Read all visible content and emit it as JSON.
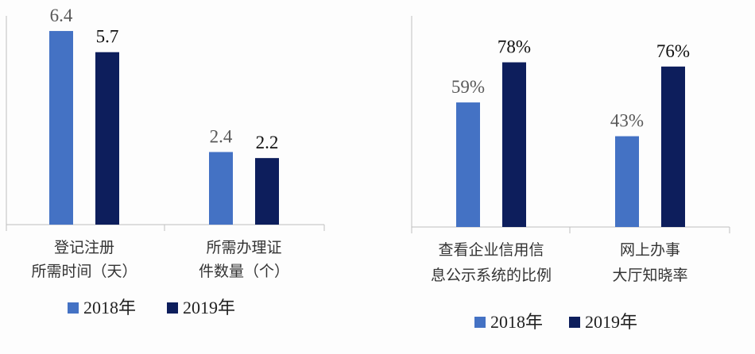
{
  "colors": {
    "s2018": "#4472C4",
    "s2019": "#0D1E5C",
    "label2018": "#595959",
    "label2019": "#111111",
    "axis": "#BFBFBF"
  },
  "chart_data": [
    {
      "type": "bar",
      "categories": [
        [
          "登记注册",
          "所需时间（天）"
        ],
        [
          "所需办理证",
          "件数量（个）"
        ]
      ],
      "series": [
        {
          "name": "2018年",
          "values": [
            6.4,
            2.4
          ],
          "labels": [
            "6.4",
            "2.4"
          ]
        },
        {
          "name": "2019年",
          "values": [
            5.7,
            2.2
          ],
          "labels": [
            "5.7",
            "2.2"
          ]
        }
      ],
      "ylim": [
        0,
        6.9
      ],
      "legend": "bottom"
    },
    {
      "type": "bar",
      "categories": [
        [
          "查看企业信用信",
          "息公示系统的比例"
        ],
        [
          "网上办事",
          "大厅知晓率"
        ]
      ],
      "series": [
        {
          "name": "2018年",
          "values": [
            59,
            43
          ],
          "labels": [
            "59%",
            "43%"
          ]
        },
        {
          "name": "2019年",
          "values": [
            78,
            76
          ],
          "labels": [
            "78%",
            "76%"
          ]
        }
      ],
      "ylim": [
        0,
        100
      ],
      "legend": "bottom"
    }
  ]
}
